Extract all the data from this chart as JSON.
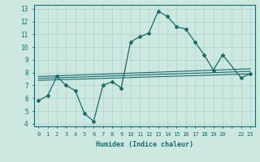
{
  "title": "",
  "xlabel": "Humidex (Indice chaleur)",
  "bg_color": "#cce8e0",
  "line_color": "#1a6b6b",
  "grid_color": "#aad4cc",
  "xlim": [
    -0.5,
    23.5
  ],
  "ylim": [
    3.8,
    13.3
  ],
  "xtick_labels": [
    "0",
    "1",
    "2",
    "3",
    "4",
    "5",
    "6",
    "7",
    "8",
    "9",
    "10",
    "11",
    "12",
    "13",
    "14",
    "15",
    "16",
    "17",
    "18",
    "19",
    "20",
    "",
    "22",
    "23"
  ],
  "yticks": [
    4,
    5,
    6,
    7,
    8,
    9,
    10,
    11,
    12,
    13
  ],
  "curve1_x": [
    0,
    1,
    2,
    3,
    4,
    5,
    6,
    7,
    8,
    9,
    10,
    11,
    12,
    13,
    14,
    15,
    16,
    17,
    18,
    19,
    20,
    22,
    23
  ],
  "curve1_y": [
    5.8,
    6.2,
    7.7,
    7.0,
    6.6,
    4.8,
    4.2,
    7.0,
    7.3,
    6.8,
    10.4,
    10.8,
    11.1,
    12.8,
    12.4,
    11.6,
    11.4,
    10.4,
    9.4,
    8.2,
    9.4,
    7.6,
    7.9
  ],
  "curve2_x": [
    0,
    23
  ],
  "curve2_y": [
    7.55,
    8.1
  ],
  "curve3_x": [
    0,
    23
  ],
  "curve3_y": [
    7.7,
    8.3
  ],
  "curve4_x": [
    0,
    23
  ],
  "curve4_y": [
    7.4,
    7.9
  ]
}
